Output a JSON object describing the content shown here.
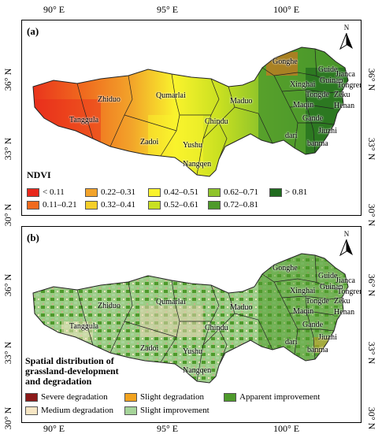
{
  "ticks": {
    "lon": [
      "90° E",
      "95° E",
      "100° E"
    ],
    "lat_a": [
      "36° N",
      "33° N",
      "30° N"
    ],
    "lat_b": [
      "36° N",
      "33° N",
      "30° N"
    ]
  },
  "panel_a": {
    "label": "(a)",
    "north": "N",
    "legend_title": "NDVI",
    "legend": [
      {
        "label": "< 0.11",
        "color": "#e8281c"
      },
      {
        "label": "0.11–0.21",
        "color": "#f06a1e"
      },
      {
        "label": "0.22–0.31",
        "color": "#f2a32a"
      },
      {
        "label": "0.32–0.41",
        "color": "#f5cf2a"
      },
      {
        "label": "0.42–0.51",
        "color": "#f9f32c"
      },
      {
        "label": "0.52–0.61",
        "color": "#c9e021"
      },
      {
        "label": "0.62–0.71",
        "color": "#8fc42a"
      },
      {
        "label": "0.72–0.81",
        "color": "#4e9a2b"
      },
      {
        "label": "> 0.81",
        "color": "#1f6b1e"
      }
    ]
  },
  "panel_b": {
    "label": "(b)",
    "north": "N",
    "legend_title_1": "Spatial distribution of",
    "legend_title_2": "grassland-development",
    "legend_title_3": "and degradation",
    "legend": [
      {
        "label": "Severe degradation",
        "color": "#8c1a1a"
      },
      {
        "label": "Medium degradation",
        "color": "#f7e6c4"
      },
      {
        "label": "Slight degradation",
        "color": "#f2a31f"
      },
      {
        "label": "Slight improvement",
        "color": "#a6d49a"
      },
      {
        "label": "Apparent improvement",
        "color": "#4e9a2b"
      }
    ]
  },
  "places": {
    "gonghe": "Gonghe",
    "guide": "Guide",
    "jianca": "Jianca",
    "xinghai": "Xinghai",
    "guinan": "Guinan",
    "tongren": "Tongren",
    "tongde": "Tongde",
    "zeku": "Zeku",
    "maqin": "Maqin",
    "henan": "Henan",
    "gande": "Gande",
    "jiuzhi": "Jiuzhi",
    "dari": "dari",
    "banma": "banma",
    "zhiduo": "Zhiduo",
    "qumarlai": "Qumarlai",
    "maduo": "Maduo",
    "tanggula": "Tanggula",
    "chindu": "Chindu",
    "zadoi": "Zadoi",
    "yushu": "Yushu",
    "nangqen": "Nangqen"
  }
}
